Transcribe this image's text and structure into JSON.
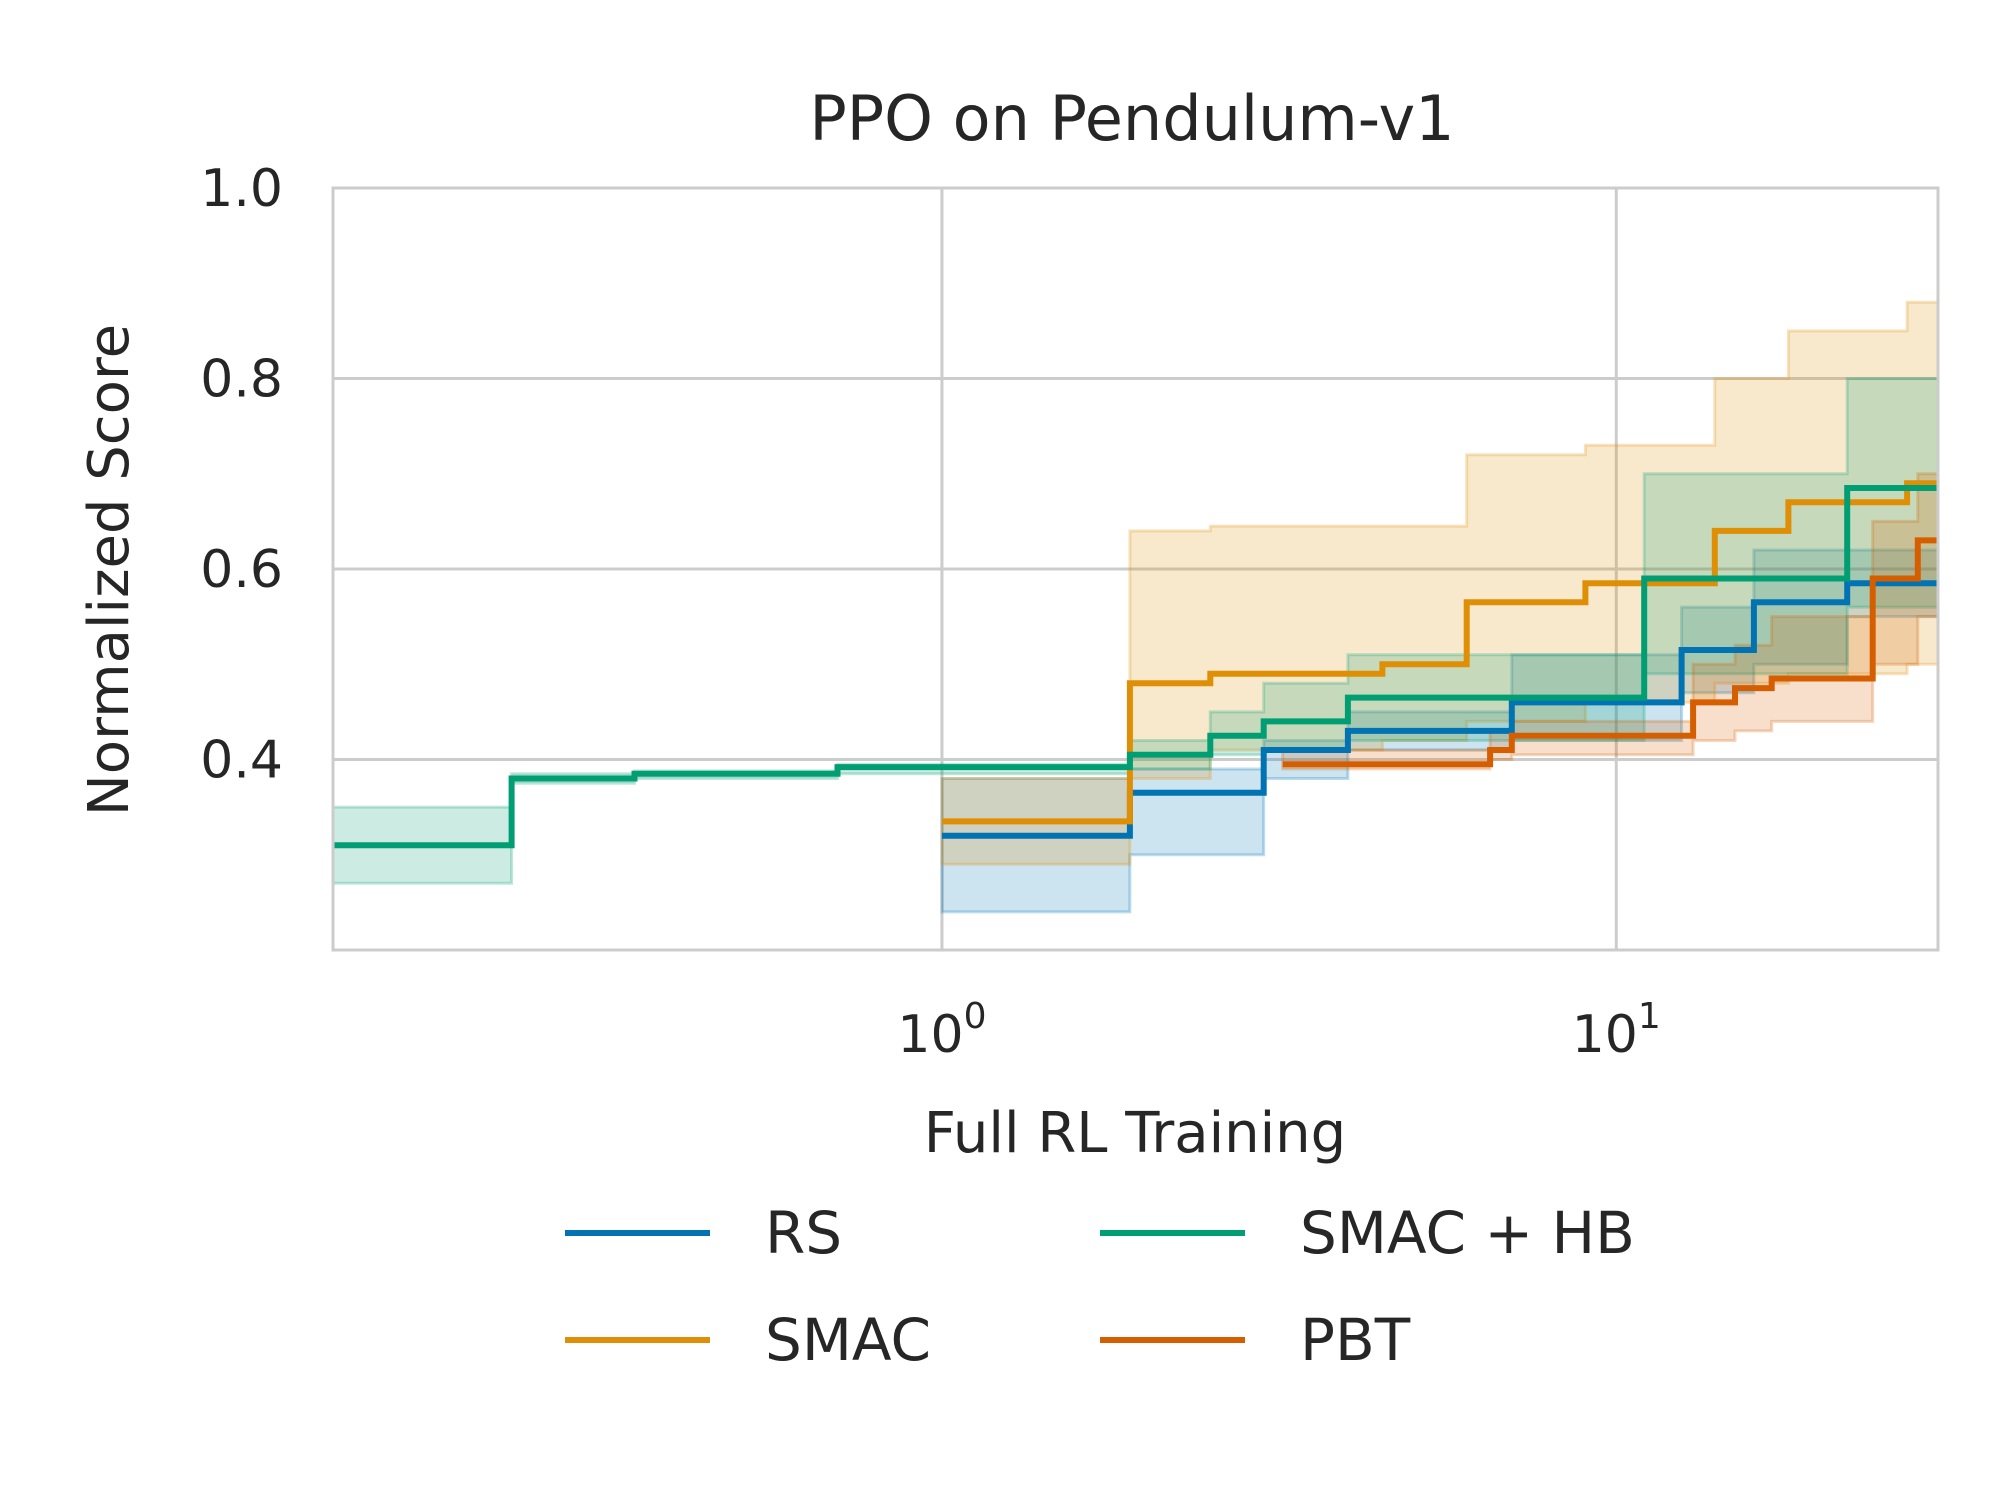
{
  "chart_data": {
    "type": "line",
    "title": "PPO on Pendulum-v1",
    "xlabel": "Full RL Training",
    "ylabel": "Normalized Score",
    "xscale": "log",
    "xlim": [
      0.125,
      30
    ],
    "ylim": [
      0.2,
      1.0
    ],
    "x_ticks": [
      {
        "value": 1,
        "base": "10",
        "exp": "0"
      },
      {
        "value": 10,
        "base": "10",
        "exp": "1"
      }
    ],
    "y_ticks": [
      {
        "value": 0.4,
        "label": "0.4"
      },
      {
        "value": 0.6,
        "label": "0.6"
      },
      {
        "value": 0.8,
        "label": "0.8"
      },
      {
        "value": 1.0,
        "label": "1.0"
      }
    ],
    "grid": true,
    "legend_position": "bottom",
    "series": [
      {
        "name": "RS",
        "color": "#0173b2",
        "x": [
          1.0,
          1.9,
          1.9,
          3.0,
          3.0,
          4.0,
          4.0,
          7.0,
          7.0,
          12.5,
          12.5,
          16.0,
          16.0,
          22.0,
          22.0,
          30.0
        ],
        "y": [
          0.32,
          0.32,
          0.365,
          0.365,
          0.41,
          0.41,
          0.43,
          0.43,
          0.46,
          0.46,
          0.515,
          0.515,
          0.565,
          0.565,
          0.585,
          0.585
        ],
        "band_upper": [
          0.38,
          0.38,
          0.39,
          0.39,
          0.42,
          0.42,
          0.45,
          0.45,
          0.51,
          0.51,
          0.56,
          0.56,
          0.62,
          0.62,
          0.62,
          0.62
        ],
        "band_lower": [
          0.24,
          0.24,
          0.3,
          0.3,
          0.38,
          0.38,
          0.41,
          0.41,
          0.42,
          0.42,
          0.47,
          0.47,
          0.5,
          0.5,
          0.55,
          0.55
        ]
      },
      {
        "name": "SMAC",
        "color": "#de8f05",
        "x": [
          1.0,
          1.9,
          1.9,
          2.5,
          2.5,
          4.5,
          4.5,
          6.0,
          6.0,
          9.0,
          9.0,
          14.0,
          14.0,
          18.0,
          18.0,
          27.0,
          27.0,
          30.0
        ],
        "y": [
          0.335,
          0.335,
          0.48,
          0.48,
          0.49,
          0.49,
          0.5,
          0.5,
          0.565,
          0.565,
          0.585,
          0.585,
          0.64,
          0.64,
          0.67,
          0.67,
          0.69,
          0.69
        ],
        "band_upper": [
          0.38,
          0.38,
          0.64,
          0.64,
          0.645,
          0.645,
          0.645,
          0.645,
          0.72,
          0.72,
          0.73,
          0.73,
          0.8,
          0.8,
          0.85,
          0.85,
          0.88,
          0.88
        ],
        "band_lower": [
          0.29,
          0.29,
          0.38,
          0.38,
          0.41,
          0.41,
          0.42,
          0.42,
          0.44,
          0.44,
          0.46,
          0.46,
          0.48,
          0.48,
          0.49,
          0.49,
          0.5,
          0.5
        ]
      },
      {
        "name": "SMAC + HB",
        "color": "#029e73",
        "x": [
          0.125,
          0.23,
          0.23,
          0.35,
          0.35,
          0.7,
          0.7,
          1.9,
          1.9,
          2.5,
          2.5,
          3.0,
          3.0,
          4.0,
          4.0,
          11.0,
          11.0,
          22.0,
          22.0,
          30.0
        ],
        "y": [
          0.31,
          0.31,
          0.38,
          0.38,
          0.385,
          0.385,
          0.392,
          0.392,
          0.405,
          0.405,
          0.425,
          0.425,
          0.44,
          0.44,
          0.465,
          0.465,
          0.59,
          0.59,
          0.685,
          0.685
        ],
        "band_upper": [
          0.35,
          0.35,
          0.385,
          0.385,
          0.388,
          0.388,
          0.395,
          0.395,
          0.42,
          0.42,
          0.45,
          0.45,
          0.48,
          0.48,
          0.51,
          0.51,
          0.7,
          0.7,
          0.8,
          0.8
        ],
        "band_lower": [
          0.27,
          0.27,
          0.375,
          0.375,
          0.38,
          0.38,
          0.385,
          0.385,
          0.39,
          0.39,
          0.405,
          0.405,
          0.41,
          0.41,
          0.42,
          0.42,
          0.49,
          0.49,
          0.56,
          0.56
        ]
      },
      {
        "name": "PBT",
        "color": "#d55e00",
        "x": [
          3.2,
          6.5,
          6.5,
          7.0,
          7.0,
          13.0,
          13.0,
          15.0,
          15.0,
          17.0,
          17.0,
          24.0,
          24.0,
          28.0,
          28.0,
          30.0
        ],
        "y": [
          0.395,
          0.395,
          0.41,
          0.41,
          0.425,
          0.425,
          0.46,
          0.46,
          0.475,
          0.475,
          0.485,
          0.485,
          0.59,
          0.59,
          0.63,
          0.63
        ],
        "band_upper": [
          0.41,
          0.41,
          0.43,
          0.43,
          0.44,
          0.44,
          0.5,
          0.5,
          0.52,
          0.52,
          0.55,
          0.55,
          0.65,
          0.65,
          0.7,
          0.7
        ],
        "band_lower": [
          0.39,
          0.39,
          0.4,
          0.4,
          0.405,
          0.405,
          0.42,
          0.42,
          0.43,
          0.43,
          0.44,
          0.44,
          0.5,
          0.5,
          0.55,
          0.55
        ]
      }
    ],
    "legend": [
      {
        "series_index": 0,
        "label": "RS"
      },
      {
        "series_index": 2,
        "label": "SMAC + HB"
      },
      {
        "series_index": 1,
        "label": "SMAC"
      },
      {
        "series_index": 3,
        "label": "PBT"
      }
    ]
  }
}
